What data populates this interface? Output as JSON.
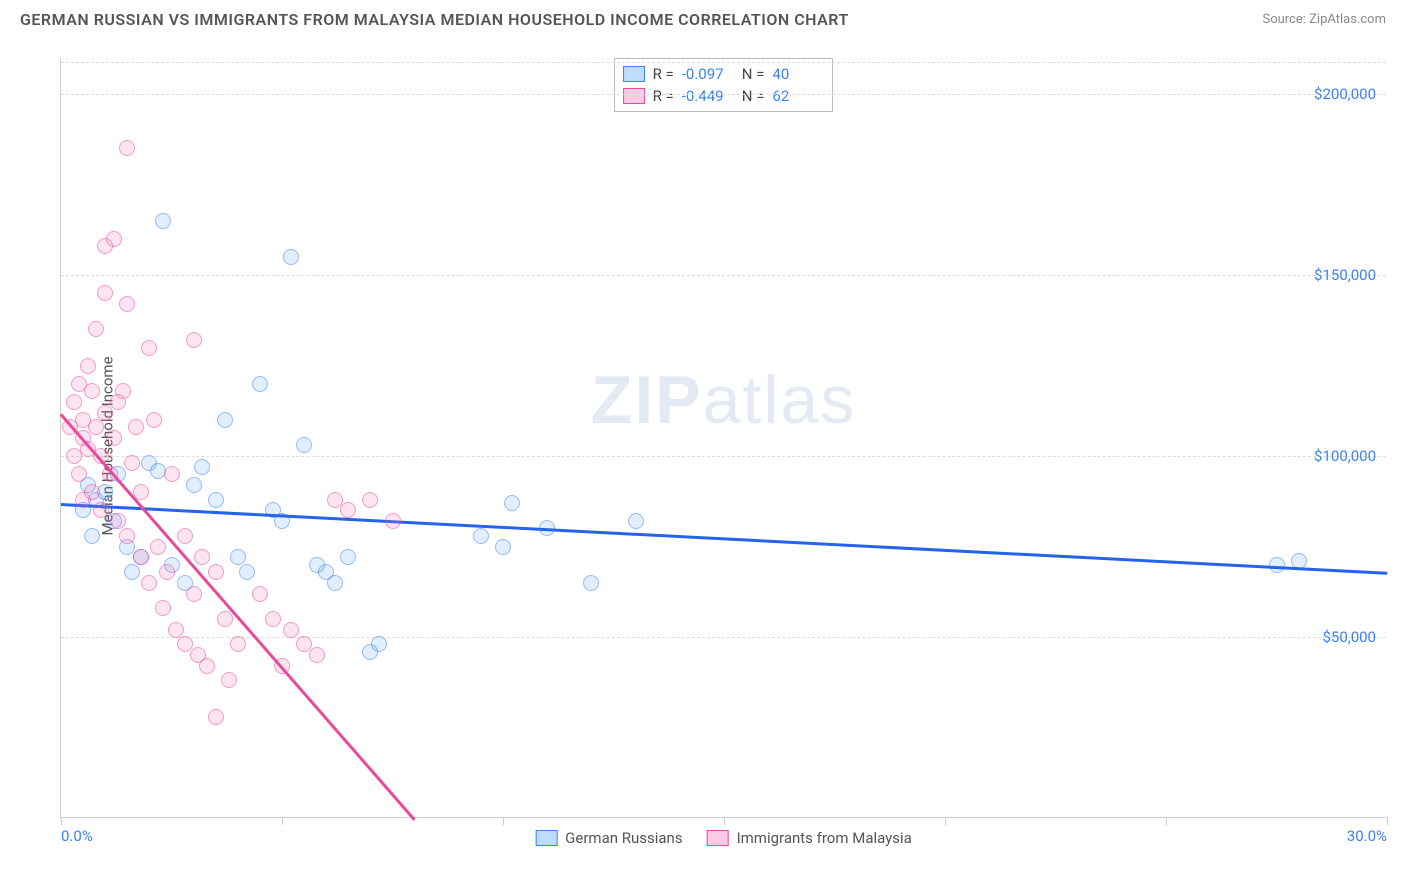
{
  "header": {
    "title": "GERMAN RUSSIAN VS IMMIGRANTS FROM MALAYSIA MEDIAN HOUSEHOLD INCOME CORRELATION CHART",
    "source": "Source: ZipAtlas.com"
  },
  "chart": {
    "type": "scatter",
    "ylabel": "Median Household Income",
    "xlim": [
      0,
      30
    ],
    "ylim": [
      0,
      210000
    ],
    "xtick_labels": {
      "start": "0.0%",
      "end": "30.0%"
    },
    "xtick_positions": [
      0,
      5,
      10,
      15,
      20,
      25,
      30
    ],
    "ytick_values": [
      50000,
      100000,
      150000,
      200000
    ],
    "ytick_labels": [
      "$50,000",
      "$100,000",
      "$150,000",
      "$200,000"
    ],
    "grid_color": "#dddddd",
    "background_color": "#ffffff",
    "watermark": "ZIPatlas",
    "series": [
      {
        "name": "German Russians",
        "color": "#3b82f6",
        "fill": "rgba(96,165,250,0.35)",
        "R": "-0.097",
        "N": "40",
        "regression": {
          "x1": 0,
          "y1": 87000,
          "x2": 30,
          "y2": 68000,
          "color": "#2563eb"
        },
        "points": [
          [
            0.5,
            85000
          ],
          [
            0.6,
            92000
          ],
          [
            0.7,
            78000
          ],
          [
            0.8,
            88000
          ],
          [
            1.0,
            90000
          ],
          [
            1.2,
            82000
          ],
          [
            1.3,
            95000
          ],
          [
            1.5,
            75000
          ],
          [
            1.6,
            68000
          ],
          [
            1.8,
            72000
          ],
          [
            2.0,
            98000
          ],
          [
            2.2,
            96000
          ],
          [
            2.3,
            165000
          ],
          [
            2.5,
            70000
          ],
          [
            2.8,
            65000
          ],
          [
            3.0,
            92000
          ],
          [
            3.2,
            97000
          ],
          [
            3.5,
            88000
          ],
          [
            3.7,
            110000
          ],
          [
            4.0,
            72000
          ],
          [
            4.2,
            68000
          ],
          [
            4.5,
            120000
          ],
          [
            4.8,
            85000
          ],
          [
            5.0,
            82000
          ],
          [
            5.2,
            155000
          ],
          [
            5.5,
            103000
          ],
          [
            5.8,
            70000
          ],
          [
            6.0,
            68000
          ],
          [
            6.2,
            65000
          ],
          [
            6.5,
            72000
          ],
          [
            7.0,
            46000
          ],
          [
            7.2,
            48000
          ],
          [
            9.5,
            78000
          ],
          [
            10.0,
            75000
          ],
          [
            10.2,
            87000
          ],
          [
            11.0,
            80000
          ],
          [
            12.0,
            65000
          ],
          [
            13.0,
            82000
          ],
          [
            27.5,
            70000
          ],
          [
            28.0,
            71000
          ]
        ]
      },
      {
        "name": "Immigrants from Malaysia",
        "color": "#ec4899",
        "fill": "rgba(244,114,182,0.35)",
        "R": "-0.449",
        "N": "62",
        "regression": {
          "x1": 0,
          "y1": 112000,
          "x2": 8,
          "y2": 0,
          "color": "#ec4899"
        },
        "points": [
          [
            0.2,
            108000
          ],
          [
            0.3,
            115000
          ],
          [
            0.3,
            100000
          ],
          [
            0.4,
            120000
          ],
          [
            0.4,
            95000
          ],
          [
            0.5,
            105000
          ],
          [
            0.5,
            110000
          ],
          [
            0.5,
            88000
          ],
          [
            0.6,
            125000
          ],
          [
            0.6,
            102000
          ],
          [
            0.7,
            118000
          ],
          [
            0.7,
            90000
          ],
          [
            0.8,
            135000
          ],
          [
            0.8,
            108000
          ],
          [
            0.9,
            100000
          ],
          [
            0.9,
            85000
          ],
          [
            1.0,
            158000
          ],
          [
            1.0,
            145000
          ],
          [
            1.0,
            112000
          ],
          [
            1.1,
            95000
          ],
          [
            1.2,
            160000
          ],
          [
            1.2,
            105000
          ],
          [
            1.3,
            115000
          ],
          [
            1.3,
            82000
          ],
          [
            1.4,
            118000
          ],
          [
            1.5,
            185000
          ],
          [
            1.5,
            142000
          ],
          [
            1.5,
            78000
          ],
          [
            1.6,
            98000
          ],
          [
            1.7,
            108000
          ],
          [
            1.8,
            72000
          ],
          [
            1.8,
            90000
          ],
          [
            2.0,
            65000
          ],
          [
            2.0,
            130000
          ],
          [
            2.1,
            110000
          ],
          [
            2.2,
            75000
          ],
          [
            2.3,
            58000
          ],
          [
            2.4,
            68000
          ],
          [
            2.5,
            95000
          ],
          [
            2.6,
            52000
          ],
          [
            2.8,
            48000
          ],
          [
            2.8,
            78000
          ],
          [
            3.0,
            132000
          ],
          [
            3.0,
            62000
          ],
          [
            3.1,
            45000
          ],
          [
            3.2,
            72000
          ],
          [
            3.3,
            42000
          ],
          [
            3.5,
            68000
          ],
          [
            3.5,
            28000
          ],
          [
            3.7,
            55000
          ],
          [
            3.8,
            38000
          ],
          [
            4.0,
            48000
          ],
          [
            4.5,
            62000
          ],
          [
            4.8,
            55000
          ],
          [
            5.0,
            42000
          ],
          [
            5.2,
            52000
          ],
          [
            5.5,
            48000
          ],
          [
            5.8,
            45000
          ],
          [
            6.2,
            88000
          ],
          [
            6.5,
            85000
          ],
          [
            7.0,
            88000
          ],
          [
            7.5,
            82000
          ]
        ]
      }
    ]
  },
  "legend": {
    "items": [
      {
        "label": "German Russians",
        "swatch": "blue"
      },
      {
        "label": "Immigrants from Malaysia",
        "swatch": "pink"
      }
    ]
  }
}
